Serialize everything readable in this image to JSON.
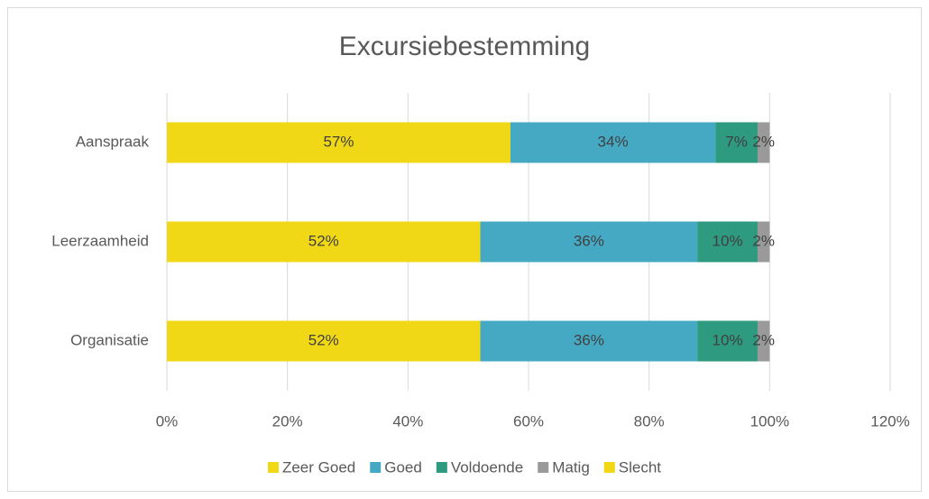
{
  "chart_data": {
    "type": "stacked-bar-horizontal",
    "title": "Excursiebestemming",
    "categories": [
      "Aanspraak",
      "Leerzaamheid",
      "Organisatie"
    ],
    "series": [
      {
        "name": "Zeer Goed",
        "color": "#f0d817",
        "values": [
          57,
          52,
          52
        ],
        "value_labels": [
          "57%",
          "52%",
          "52%"
        ]
      },
      {
        "name": "Goed",
        "color": "#46a9c4",
        "values": [
          34,
          36,
          36
        ],
        "value_labels": [
          "34%",
          "36%",
          "36%"
        ]
      },
      {
        "name": "Voldoende",
        "color": "#2e9a80",
        "values": [
          7,
          10,
          10
        ],
        "value_labels": [
          "7%",
          "10%",
          "10%"
        ]
      },
      {
        "name": "Matig",
        "color": "#9a9a9a",
        "values": [
          2,
          2,
          2
        ],
        "value_labels": [
          "2%",
          "2%",
          "2%"
        ]
      },
      {
        "name": "Slecht",
        "color": "#f0d817",
        "values": [
          0,
          0,
          0
        ]
      }
    ],
    "xlim": [
      0,
      120
    ],
    "xticks": [
      {
        "value": 0,
        "label": "0%"
      },
      {
        "value": 20,
        "label": "20%"
      },
      {
        "value": 40,
        "label": "40%"
      },
      {
        "value": 60,
        "label": "60%"
      },
      {
        "value": 80,
        "label": "80%"
      },
      {
        "value": 100,
        "label": "100%"
      },
      {
        "value": 120,
        "label": "120%"
      }
    ],
    "grid": true,
    "legend": "bottom"
  }
}
